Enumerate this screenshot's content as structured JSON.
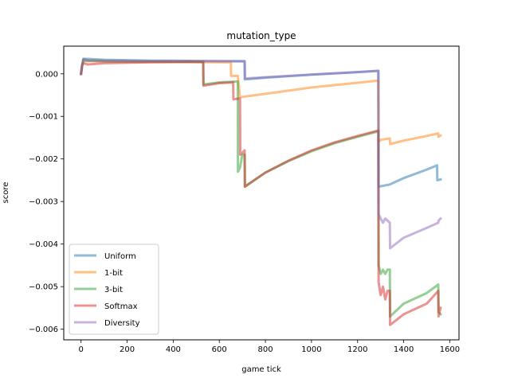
{
  "chart_data": {
    "type": "line",
    "title": "mutation_type",
    "xlabel": "game tick",
    "ylabel": "score",
    "xlim": [
      -75,
      1640
    ],
    "ylim": [
      -0.00625,
      0.00065
    ],
    "xticks": [
      0,
      200,
      400,
      600,
      800,
      1000,
      1200,
      1400,
      1600
    ],
    "xtick_labels": [
      "0",
      "200",
      "400",
      "600",
      "800",
      "1000",
      "1200",
      "1400",
      "1600"
    ],
    "yticks": [
      0.0,
      -0.001,
      -0.002,
      -0.003,
      -0.004,
      -0.005,
      -0.006
    ],
    "ytick_labels": [
      "0.000",
      "−0.001",
      "−0.002",
      "−0.003",
      "−0.004",
      "−0.005",
      "−0.006"
    ],
    "legend_position": "lower-left",
    "grid": false,
    "series": [
      {
        "name": "Uniform",
        "color": "#1f77b4",
        "points": [
          [
            0,
            0.0
          ],
          [
            5,
            0.0002
          ],
          [
            10,
            0.00035
          ],
          [
            30,
            0.00035
          ],
          [
            100,
            0.00033
          ],
          [
            200,
            0.00032
          ],
          [
            300,
            0.00031
          ],
          [
            400,
            0.00031
          ],
          [
            530,
            0.0003
          ],
          [
            680,
            0.0003
          ],
          [
            690,
            0.0003
          ],
          [
            710,
            0.0003
          ],
          [
            711,
            -0.00013
          ],
          [
            800,
            -9e-05
          ],
          [
            1000,
            -2e-05
          ],
          [
            1200,
            4e-05
          ],
          [
            1290,
            7e-05
          ],
          [
            1291,
            -0.00265
          ],
          [
            1340,
            -0.0026
          ],
          [
            1400,
            -0.00245
          ],
          [
            1500,
            -0.00225
          ],
          [
            1545,
            -0.00215
          ],
          [
            1546,
            -0.0025
          ],
          [
            1560,
            -0.00248
          ]
        ]
      },
      {
        "name": "1-bit",
        "color": "#ff7f0e",
        "points": [
          [
            0,
            0.0
          ],
          [
            5,
            0.0002
          ],
          [
            10,
            0.0003
          ],
          [
            30,
            0.0003
          ],
          [
            100,
            0.00029
          ],
          [
            200,
            0.00028
          ],
          [
            400,
            0.00028
          ],
          [
            640,
            0.00027
          ],
          [
            650,
            0.00027
          ],
          [
            651,
            -5e-05
          ],
          [
            670,
            -5e-05
          ],
          [
            680,
            -5e-05
          ],
          [
            690,
            -0.00055
          ],
          [
            800,
            -0.00047
          ],
          [
            1000,
            -0.00032
          ],
          [
            1200,
            -0.00021
          ],
          [
            1290,
            -0.00016
          ],
          [
            1291,
            -0.0016
          ],
          [
            1300,
            -0.00155
          ],
          [
            1340,
            -0.00152
          ],
          [
            1341,
            -0.00165
          ],
          [
            1400,
            -0.00157
          ],
          [
            1500,
            -0.00146
          ],
          [
            1550,
            -0.0014
          ],
          [
            1551,
            -0.00148
          ],
          [
            1560,
            -0.00145
          ]
        ]
      },
      {
        "name": "3-bit",
        "color": "#2ca02c",
        "points": [
          [
            0,
            0.0
          ],
          [
            5,
            0.0002
          ],
          [
            10,
            0.00032
          ],
          [
            30,
            0.00031
          ],
          [
            100,
            0.0003
          ],
          [
            300,
            0.00029
          ],
          [
            530,
            0.00028
          ],
          [
            531,
            -0.00025
          ],
          [
            600,
            -0.0002
          ],
          [
            680,
            -0.00018
          ],
          [
            681,
            -0.0023
          ],
          [
            690,
            -0.0022
          ],
          [
            700,
            -0.0019
          ],
          [
            710,
            -0.0019
          ],
          [
            711,
            -0.00265
          ],
          [
            800,
            -0.00232
          ],
          [
            900,
            -0.00205
          ],
          [
            1000,
            -0.00182
          ],
          [
            1100,
            -0.00163
          ],
          [
            1200,
            -0.00148
          ],
          [
            1290,
            -0.00135
          ],
          [
            1291,
            -0.0045
          ],
          [
            1300,
            -0.0047
          ],
          [
            1310,
            -0.0046
          ],
          [
            1320,
            -0.0047
          ],
          [
            1330,
            -0.0046
          ],
          [
            1340,
            -0.0046
          ],
          [
            1341,
            -0.0057
          ],
          [
            1400,
            -0.0054
          ],
          [
            1500,
            -0.00515
          ],
          [
            1550,
            -0.00495
          ],
          [
            1551,
            -0.0056
          ],
          [
            1560,
            -0.00565
          ]
        ]
      },
      {
        "name": "Softmax",
        "color": "#d62728",
        "points": [
          [
            0,
            0.0
          ],
          [
            5,
            0.0002
          ],
          [
            10,
            0.00025
          ],
          [
            30,
            0.00022
          ],
          [
            100,
            0.00025
          ],
          [
            300,
            0.00027
          ],
          [
            530,
            0.00028
          ],
          [
            531,
            -0.00028
          ],
          [
            600,
            -0.00022
          ],
          [
            660,
            -0.0002
          ],
          [
            661,
            -0.0006
          ],
          [
            690,
            -0.00058
          ],
          [
            691,
            -0.0019
          ],
          [
            710,
            -0.0018
          ],
          [
            711,
            -0.00265
          ],
          [
            800,
            -0.00232
          ],
          [
            900,
            -0.00204
          ],
          [
            1000,
            -0.0018
          ],
          [
            1100,
            -0.00161
          ],
          [
            1200,
            -0.00146
          ],
          [
            1290,
            -0.00133
          ],
          [
            1291,
            -0.0049
          ],
          [
            1300,
            -0.0052
          ],
          [
            1310,
            -0.005
          ],
          [
            1320,
            -0.0053
          ],
          [
            1330,
            -0.0051
          ],
          [
            1340,
            -0.0051
          ],
          [
            1341,
            -0.0059
          ],
          [
            1400,
            -0.00565
          ],
          [
            1500,
            -0.0054
          ],
          [
            1550,
            -0.0051
          ],
          [
            1551,
            -0.0057
          ],
          [
            1560,
            -0.0055
          ]
        ]
      },
      {
        "name": "Diversity",
        "color": "#9467bd",
        "points": [
          [
            0,
            0.0
          ],
          [
            5,
            0.0002
          ],
          [
            10,
            0.00035
          ],
          [
            30,
            0.00032
          ],
          [
            100,
            0.00031
          ],
          [
            300,
            0.0003
          ],
          [
            530,
            0.0003
          ],
          [
            700,
            0.00029
          ],
          [
            710,
            0.00029
          ],
          [
            711,
            -0.00011
          ],
          [
            800,
            -8e-05
          ],
          [
            1000,
            -2e-05
          ],
          [
            1200,
            4e-05
          ],
          [
            1290,
            7e-05
          ],
          [
            1291,
            -0.0033
          ],
          [
            1300,
            -0.0034
          ],
          [
            1310,
            -0.0035
          ],
          [
            1320,
            -0.0034
          ],
          [
            1340,
            -0.0035
          ],
          [
            1341,
            -0.0041
          ],
          [
            1400,
            -0.00385
          ],
          [
            1500,
            -0.00362
          ],
          [
            1550,
            -0.0035
          ],
          [
            1551,
            -0.00345
          ],
          [
            1560,
            -0.0034
          ]
        ]
      }
    ]
  }
}
